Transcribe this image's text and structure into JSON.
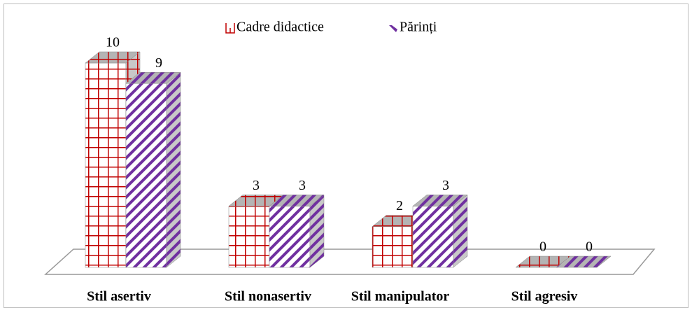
{
  "chart_data": {
    "type": "bar3d",
    "categories": [
      "Stil asertiv",
      "Stil nonasertiv",
      "Stil manipulator",
      "Stil agresiv"
    ],
    "series": [
      {
        "name": "Cadre didactice",
        "color": "#c00000",
        "values": [
          10,
          3,
          2,
          0
        ]
      },
      {
        "name": "Părinți",
        "color": "#7030a0",
        "values": [
          9,
          3,
          3,
          0
        ]
      }
    ],
    "legend": "top"
  }
}
